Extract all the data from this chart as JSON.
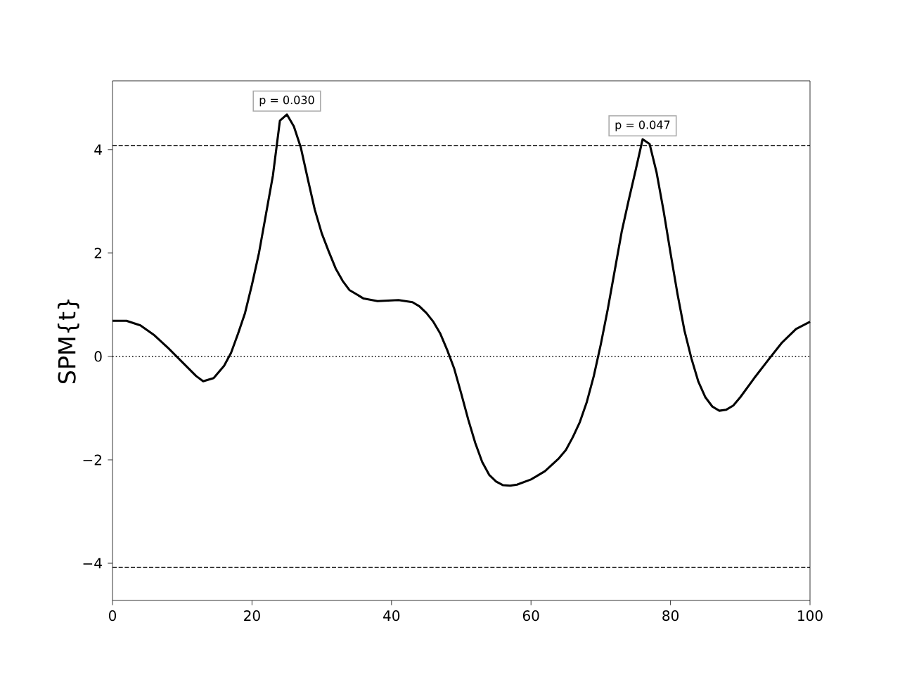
{
  "chart_data": {
    "type": "line",
    "ylabel": "SPM{t}",
    "x": [
      0,
      2,
      4,
      6,
      8,
      10,
      12,
      13,
      14.5,
      16,
      17,
      18,
      19,
      20,
      21,
      22,
      23,
      24,
      25,
      26,
      27,
      28,
      29,
      30,
      31,
      32,
      33,
      34,
      36,
      38,
      41,
      43,
      44,
      45,
      46,
      47,
      48,
      49,
      50,
      51,
      52,
      53,
      54,
      55,
      56,
      57,
      58,
      60,
      62,
      64,
      65,
      66,
      67,
      68,
      69,
      70,
      71,
      72,
      73,
      74,
      75,
      76,
      77,
      78,
      79,
      80,
      81,
      82,
      83,
      84,
      85,
      86,
      87,
      88,
      89,
      90,
      92,
      94,
      96,
      98,
      100
    ],
    "series": [
      {
        "color": "#000000",
        "values": [
          0.69,
          0.69,
          0.6,
          0.41,
          0.16,
          -0.11,
          -0.38,
          -0.48,
          -0.42,
          -0.18,
          0.07,
          0.44,
          0.84,
          1.39,
          2.0,
          2.75,
          3.5,
          4.56,
          4.68,
          4.45,
          4.04,
          3.43,
          2.84,
          2.38,
          2.03,
          1.7,
          1.46,
          1.28,
          1.12,
          1.07,
          1.09,
          1.05,
          0.97,
          0.84,
          0.67,
          0.44,
          0.12,
          -0.24,
          -0.72,
          -1.22,
          -1.67,
          -2.04,
          -2.29,
          -2.42,
          -2.49,
          -2.5,
          -2.48,
          -2.38,
          -2.22,
          -1.97,
          -1.81,
          -1.56,
          -1.27,
          -0.88,
          -0.38,
          0.23,
          0.91,
          1.66,
          2.41,
          3.02,
          3.6,
          4.2,
          4.11,
          3.56,
          2.82,
          2.0,
          1.21,
          0.5,
          -0.04,
          -0.49,
          -0.79,
          -0.97,
          -1.05,
          -1.03,
          -0.95,
          -0.79,
          -0.42,
          -0.07,
          0.27,
          0.53,
          0.67
        ]
      }
    ],
    "xlim": [
      0,
      100
    ],
    "ylim": [
      -4.72,
      5.33
    ],
    "xticks": [
      0,
      20,
      40,
      60,
      80,
      100
    ],
    "yticks": [
      {
        "value": -4,
        "label": "−4"
      },
      {
        "value": -2,
        "label": "−2"
      },
      0,
      2,
      4
    ],
    "ref_lines": [
      {
        "axis": "y",
        "value": 4.08,
        "color": "#000000",
        "line_style": "dashed"
      },
      {
        "axis": "y",
        "value": -4.08,
        "color": "#000000",
        "line_style": "dashed"
      },
      {
        "axis": "y",
        "value": 0,
        "color": "#000000",
        "line_style": "dotted"
      }
    ],
    "annotations": [
      {
        "text": "p = 0.030",
        "x": 25,
        "y": 4.68
      },
      {
        "text": "p = 0.047",
        "x": 76,
        "y": 4.2
      }
    ],
    "marker": "none",
    "line_style": "solid"
  }
}
